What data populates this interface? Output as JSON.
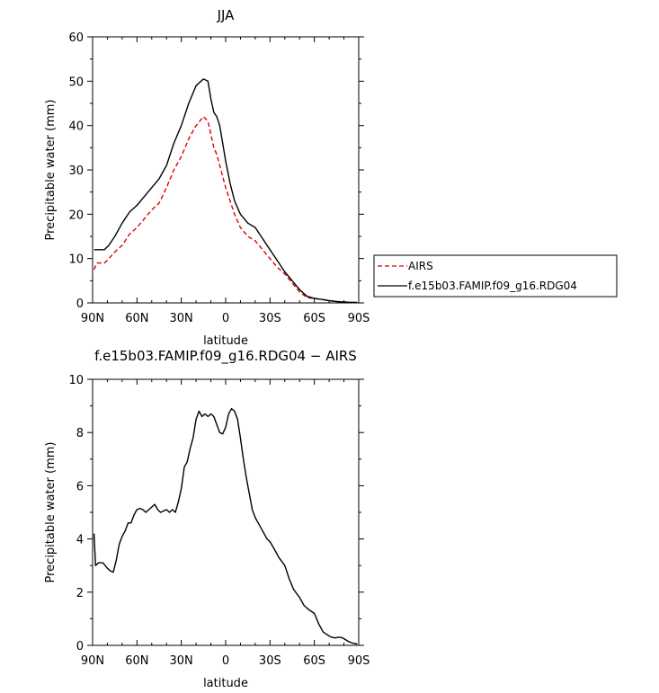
{
  "chart_data": [
    {
      "type": "line",
      "title": "JJA",
      "xlabel": "latitude",
      "ylabel": "Precipitable water (mm)",
      "xlim": [
        90,
        -90
      ],
      "ylim": [
        0,
        60
      ],
      "x_ticks": [
        90,
        60,
        30,
        0,
        -30,
        -60,
        -90
      ],
      "x_tick_labels": [
        "90N",
        "60N",
        "30N",
        "0",
        "30S",
        "60S",
        "90S"
      ],
      "y_ticks": [
        0,
        10,
        20,
        30,
        40,
        50,
        60
      ],
      "y_tick_labels": [
        "0",
        "10",
        "20",
        "30",
        "40",
        "50",
        "60"
      ],
      "legend_position": "right",
      "series": [
        {
          "name": "AIRS",
          "color": "#e00000",
          "dash": "dashed",
          "x": [
            89,
            87,
            85,
            82,
            79,
            75,
            70,
            65,
            60,
            55,
            50,
            45,
            40,
            35,
            30,
            25,
            20,
            15,
            12,
            10,
            8,
            6,
            4,
            2,
            0,
            -3,
            -6,
            -10,
            -15,
            -20,
            -25,
            -30,
            -35,
            -40,
            -45,
            -50,
            -55,
            -60,
            -65,
            -70,
            -75,
            -80,
            -85,
            -89
          ],
          "y": [
            7.5,
            9,
            9,
            9,
            10,
            11.5,
            13,
            15.5,
            17,
            19,
            21,
            22.5,
            26,
            30,
            33,
            37,
            40,
            42,
            41,
            38,
            35,
            33.5,
            31,
            28.5,
            26,
            23,
            20,
            17,
            15,
            14,
            12,
            10,
            8,
            6.5,
            4.5,
            2.5,
            1.2,
            1.0,
            0.8,
            0.5,
            0.3,
            0.2,
            0.1,
            0.1
          ]
        },
        {
          "name": "f.e15b03.FAMIP.f09_g16.RDG04",
          "color": "#000000",
          "dash": "solid",
          "x": [
            89,
            87,
            85,
            82,
            79,
            75,
            70,
            65,
            60,
            55,
            50,
            45,
            40,
            35,
            30,
            25,
            20,
            15,
            12,
            10,
            8,
            6,
            4,
            2,
            0,
            -3,
            -6,
            -10,
            -15,
            -20,
            -25,
            -30,
            -35,
            -40,
            -45,
            -50,
            -55,
            -60,
            -65,
            -70,
            -75,
            -80,
            -85,
            -89
          ],
          "y": [
            12,
            12,
            12,
            12,
            13,
            15,
            18,
            20.5,
            22,
            24,
            26,
            28,
            31,
            36,
            40,
            45,
            49,
            50.5,
            50,
            46,
            43,
            42,
            40,
            36,
            32,
            27,
            23,
            20,
            18,
            17,
            14.5,
            12,
            9.5,
            7,
            5,
            3,
            1.5,
            1.0,
            0.8,
            0.5,
            0.3,
            0.2,
            0.1,
            0.1
          ]
        }
      ]
    },
    {
      "type": "line",
      "title": "f.e15b03.FAMIP.f09_g16.RDG04 − AIRS",
      "xlabel": "latitude",
      "ylabel": "Precipitable water (mm)",
      "xlim": [
        90,
        -90
      ],
      "ylim": [
        0,
        10
      ],
      "x_ticks": [
        90,
        60,
        30,
        0,
        -30,
        -60,
        -90
      ],
      "x_tick_labels": [
        "90N",
        "60N",
        "30N",
        "0",
        "30S",
        "60S",
        "90S"
      ],
      "y_ticks": [
        0,
        2,
        4,
        6,
        8,
        10
      ],
      "y_tick_labels": [
        "0",
        "2",
        "4",
        "6",
        "8",
        "10"
      ],
      "series": [
        {
          "color": "#000000",
          "dash": "solid",
          "x": [
            89,
            88,
            86,
            83,
            80,
            78,
            76,
            74,
            72,
            70,
            68,
            66,
            64,
            62,
            60,
            58,
            56,
            54,
            52,
            50,
            48,
            46,
            44,
            42,
            40,
            38,
            36,
            34,
            32,
            30,
            28,
            26,
            24,
            22,
            20,
            18,
            16,
            14,
            12,
            10,
            8,
            6,
            4,
            2,
            0,
            -2,
            -4,
            -6,
            -8,
            -10,
            -12,
            -14,
            -16,
            -18,
            -20,
            -22,
            -25,
            -28,
            -30,
            -33,
            -36,
            -40,
            -43,
            -46,
            -50,
            -53,
            -56,
            -60,
            -63,
            -66,
            -70,
            -72,
            -74,
            -76,
            -78,
            -80,
            -83,
            -86,
            -89
          ],
          "y": [
            4.2,
            3.0,
            3.1,
            3.1,
            2.9,
            2.8,
            2.75,
            3.2,
            3.8,
            4.1,
            4.3,
            4.6,
            4.6,
            4.9,
            5.1,
            5.15,
            5.1,
            5.0,
            5.1,
            5.2,
            5.3,
            5.1,
            5.0,
            5.05,
            5.1,
            5.0,
            5.1,
            5.0,
            5.4,
            5.9,
            6.7,
            6.9,
            7.4,
            7.8,
            8.5,
            8.8,
            8.6,
            8.7,
            8.6,
            8.7,
            8.6,
            8.3,
            8.0,
            7.95,
            8.2,
            8.7,
            8.9,
            8.8,
            8.5,
            7.8,
            7.0,
            6.3,
            5.7,
            5.1,
            4.8,
            4.6,
            4.3,
            4.0,
            3.9,
            3.6,
            3.3,
            3.0,
            2.5,
            2.1,
            1.8,
            1.5,
            1.35,
            1.2,
            0.8,
            0.5,
            0.35,
            0.3,
            0.28,
            0.3,
            0.3,
            0.25,
            0.15,
            0.08,
            0.05
          ]
        }
      ]
    }
  ]
}
